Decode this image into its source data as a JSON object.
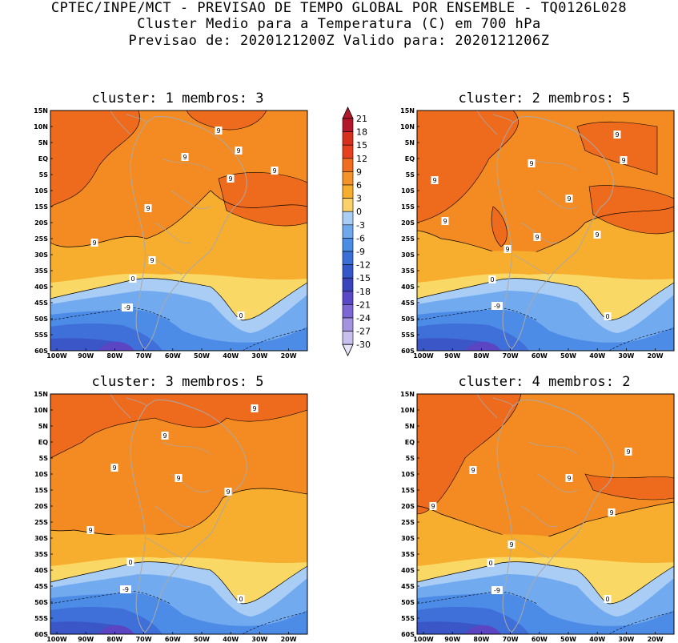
{
  "header": {
    "line1": "CPTEC/INPE/MCT - PREVISAO DE TEMPO GLOBAL POR ENSEMBLE - TQ0126L028",
    "line2": "Cluster Medio para a Temperatura (C) em 700 hPa",
    "line3": "Previsao de: 2020121200Z   Valido para: 2020121206Z"
  },
  "panels": [
    {
      "title": "cluster: 1  membros: 3"
    },
    {
      "title": "cluster: 2  membros: 5"
    },
    {
      "title": "cluster: 3  membros: 5"
    },
    {
      "title": "cluster: 4  membros: 2"
    }
  ],
  "axes": {
    "lat_labels": [
      "15N",
      "10N",
      "5N",
      "EQ",
      "5S",
      "10S",
      "15S",
      "20S",
      "25S",
      "30S",
      "35S",
      "40S",
      "45S",
      "50S",
      "55S",
      "60S"
    ],
    "lon_labels": [
      "100W",
      "90W",
      "80W",
      "70W",
      "60W",
      "50W",
      "40W",
      "30W",
      "20W"
    ]
  },
  "colorbar": {
    "levels": [
      "21",
      "18",
      "15",
      "12",
      "9",
      "6",
      "3",
      "0",
      "-3",
      "-6",
      "-9",
      "-12",
      "-15",
      "-18",
      "-21",
      "-24",
      "-27",
      "-30"
    ],
    "colors": [
      "#b2182b",
      "#d7301f",
      "#e6401f",
      "#f06c1f",
      "#f5922a",
      "#f7ae2e",
      "#fbd26a",
      "#a9cdf5",
      "#6fa8ec",
      "#4a8ce3",
      "#3a6fd8",
      "#3457c9",
      "#3a45bd",
      "#5a48c6",
      "#7d67d4",
      "#a393e0",
      "#c9bfee"
    ]
  },
  "contour_labels": {
    "nine": "9",
    "zero": "0",
    "minus_nine": "-9"
  }
}
